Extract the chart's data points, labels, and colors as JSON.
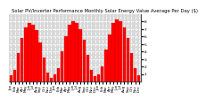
{
  "title": "Solar PV/Inverter Performance Monthly Solar Energy Value Average Per Day ($)",
  "bar_values": [
    0.8,
    1.5,
    3.8,
    5.8,
    7.2,
    7.8,
    7.5,
    6.8,
    5.2,
    3.2,
    1.2,
    0.5,
    0.9,
    1.8,
    4.0,
    6.0,
    7.5,
    8.0,
    7.8,
    7.0,
    5.5,
    3.5,
    1.5,
    0.7,
    1.0,
    2.0,
    4.2,
    6.2,
    7.8,
    8.3,
    8.0,
    7.2,
    5.8,
    3.8,
    1.8,
    0.8
  ],
  "bar_color": "#ff0000",
  "bar_edge_color": "#cc0000",
  "bg_color": "#ffffff",
  "plot_bg": "#d8d8d8",
  "ylim": [
    0,
    9
  ],
  "ytick_vals": [
    1,
    2,
    3,
    4,
    5,
    6,
    7,
    8
  ],
  "grid_color": "#ffffff",
  "title_fontsize": 3.8,
  "tick_fontsize": 3.2,
  "xlabel_fontsize": 3.0,
  "months": [
    "Jan",
    "Feb",
    "Mar",
    "Apr",
    "May",
    "Jun",
    "Jul",
    "Aug",
    "Sep",
    "Oct",
    "Nov",
    "Dec"
  ]
}
